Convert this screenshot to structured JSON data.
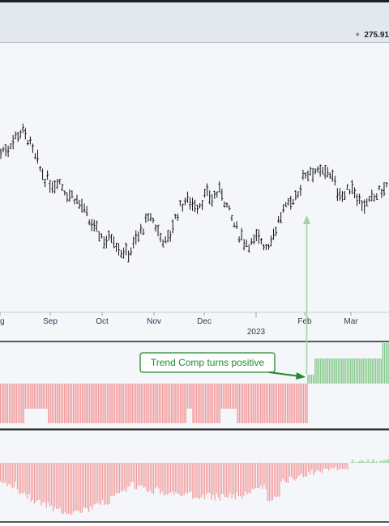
{
  "header": {
    "price_readout": "275.91"
  },
  "chart_data": [
    {
      "type": "bar",
      "panel": "price",
      "style": "ohlc",
      "x_axis": {
        "tick_labels": [
          "g",
          "Sep",
          "Oct",
          "Nov",
          "Dec",
          "Feb",
          "Mar"
        ],
        "year_label": "2023"
      },
      "close_path_relative": [
        [
          0.0,
          0.82
        ],
        [
          0.02,
          0.85
        ],
        [
          0.04,
          0.92
        ],
        [
          0.055,
          0.95
        ],
        [
          0.07,
          0.9
        ],
        [
          0.09,
          0.78
        ],
        [
          0.11,
          0.68
        ],
        [
          0.13,
          0.62
        ],
        [
          0.15,
          0.66
        ],
        [
          0.17,
          0.58
        ],
        [
          0.19,
          0.56
        ],
        [
          0.21,
          0.5
        ],
        [
          0.23,
          0.4
        ],
        [
          0.25,
          0.36
        ],
        [
          0.27,
          0.3
        ],
        [
          0.29,
          0.33
        ],
        [
          0.31,
          0.24
        ],
        [
          0.33,
          0.22
        ],
        [
          0.35,
          0.3
        ],
        [
          0.37,
          0.38
        ],
        [
          0.39,
          0.44
        ],
        [
          0.41,
          0.34
        ],
        [
          0.43,
          0.28
        ],
        [
          0.45,
          0.42
        ],
        [
          0.47,
          0.52
        ],
        [
          0.49,
          0.54
        ],
        [
          0.51,
          0.5
        ],
        [
          0.53,
          0.56
        ],
        [
          0.55,
          0.55
        ],
        [
          0.57,
          0.6
        ],
        [
          0.59,
          0.48
        ],
        [
          0.61,
          0.36
        ],
        [
          0.63,
          0.3
        ],
        [
          0.65,
          0.28
        ],
        [
          0.67,
          0.32
        ],
        [
          0.69,
          0.26
        ],
        [
          0.71,
          0.36
        ],
        [
          0.73,
          0.46
        ],
        [
          0.75,
          0.52
        ],
        [
          0.77,
          0.58
        ],
        [
          0.79,
          0.7
        ],
        [
          0.81,
          0.72
        ],
        [
          0.83,
          0.68
        ],
        [
          0.85,
          0.72
        ],
        [
          0.87,
          0.6
        ],
        [
          0.89,
          0.56
        ],
        [
          0.91,
          0.62
        ],
        [
          0.93,
          0.54
        ],
        [
          0.95,
          0.5
        ],
        [
          0.97,
          0.56
        ],
        [
          1.0,
          0.62
        ]
      ]
    },
    {
      "type": "bar",
      "panel": "trend-composite",
      "annotation": "Trend Comp turns positive",
      "series": [
        {
          "color": "#f29a9a",
          "segment": "negative"
        },
        {
          "color": "#86c98a",
          "segment": "positive"
        }
      ]
    },
    {
      "type": "bar",
      "panel": "oscillator-histogram",
      "series": [
        {
          "color": "#f29a9a",
          "segment": "negative"
        },
        {
          "color": "#86c98a",
          "segment": "positive"
        }
      ]
    }
  ],
  "colors": {
    "panel_bg": "#f4f6fa",
    "axis_line": "#222222",
    "grid": "#dde2ea",
    "bar_ohlc": "#111111",
    "negative": "#f29a9a",
    "positive": "#86c98a",
    "callout": "#1f8a2f",
    "arrow_vertical": "#9ed6a0",
    "text": "#2c3b55"
  },
  "icons": {
    "price_readout_marker": "circle-dot-icon"
  }
}
